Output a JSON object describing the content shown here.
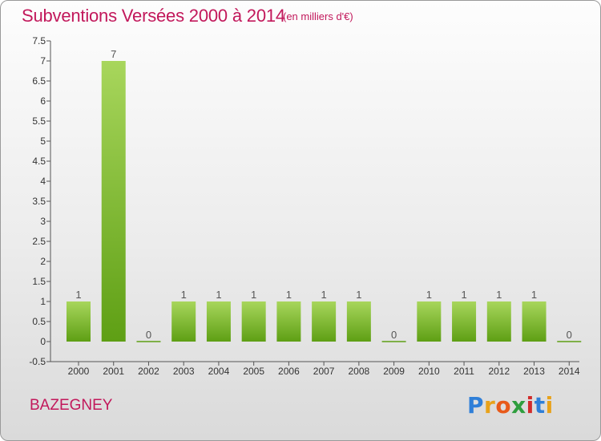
{
  "header": {
    "title": "Subventions Versées 2000 à 2014",
    "subtitle": "(en milliers d'€)"
  },
  "footer": {
    "commune": "BAZEGNEY",
    "logo_letters": [
      "P",
      "r",
      "o",
      "x",
      "i",
      "t",
      "i"
    ],
    "logo_colors": [
      "#2f7fd8",
      "#e8a21a",
      "#e85a1a",
      "#2e9e3e",
      "#d12b2b",
      "#2f7fd8",
      "#e8a21a"
    ]
  },
  "colors": {
    "bar_light": "#a8d65c",
    "bar_dark": "#5e9f14",
    "title": "#c2185b"
  },
  "chart_data": {
    "type": "bar",
    "title": "Subventions Versées 2000 à 2014",
    "subtitle": "(en milliers d'€)",
    "categories": [
      "2000",
      "2001",
      "2002",
      "2003",
      "2004",
      "2005",
      "2006",
      "2007",
      "2008",
      "2009",
      "2010",
      "2011",
      "2012",
      "2013",
      "2014"
    ],
    "values": [
      1,
      7,
      0,
      1,
      1,
      1,
      1,
      1,
      1,
      0,
      1,
      1,
      1,
      1,
      0
    ],
    "data_labels": [
      "1",
      "7",
      "0",
      "1",
      "1",
      "1",
      "1",
      "1",
      "1",
      "0",
      "1",
      "1",
      "1",
      "1",
      "0"
    ],
    "ylim": [
      -0.5,
      7.5
    ],
    "yticks": [
      -0.5,
      0,
      0.5,
      1,
      1.5,
      2,
      2.5,
      3,
      3.5,
      4,
      4.5,
      5,
      5.5,
      6,
      6.5,
      7,
      7.5
    ],
    "ytick_labels": [
      "-0.5",
      "0",
      "0.5",
      "1",
      "1.5",
      "2",
      "2.5",
      "3",
      "3.5",
      "4",
      "4.5",
      "5",
      "5.5",
      "6",
      "6.5",
      "7",
      "7.5"
    ],
    "grid": false,
    "legend": "none"
  }
}
